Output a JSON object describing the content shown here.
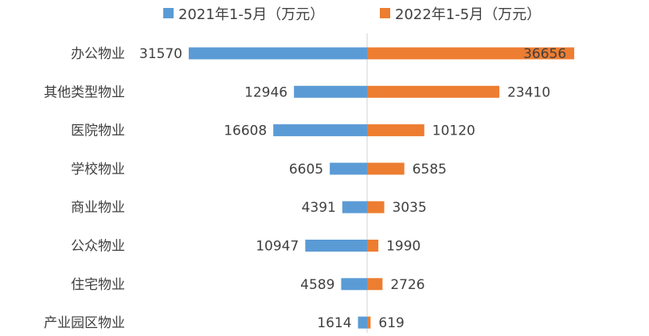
{
  "chart_data": {
    "type": "bar",
    "orientation": "horizontal-butterfly",
    "categories": [
      "办公物业",
      "其他类型物业",
      "医院物业",
      "学校物业",
      "商业物业",
      "公众物业",
      "住宅物业",
      "产业园区物业"
    ],
    "series": [
      {
        "name": "2021年1-5月（万元）",
        "color": "#5b9bd5",
        "values": [
          31570,
          12946,
          16608,
          6605,
          4391,
          10947,
          4589,
          1614
        ]
      },
      {
        "name": "2022年1-5月（万元）",
        "color": "#ed7d31",
        "values": [
          36656,
          23410,
          10120,
          6585,
          3035,
          1990,
          2726,
          619
        ]
      }
    ],
    "legend_position": "top",
    "grid": false,
    "axis_line_color": "#d0d0d0",
    "text_color": "#404040"
  }
}
